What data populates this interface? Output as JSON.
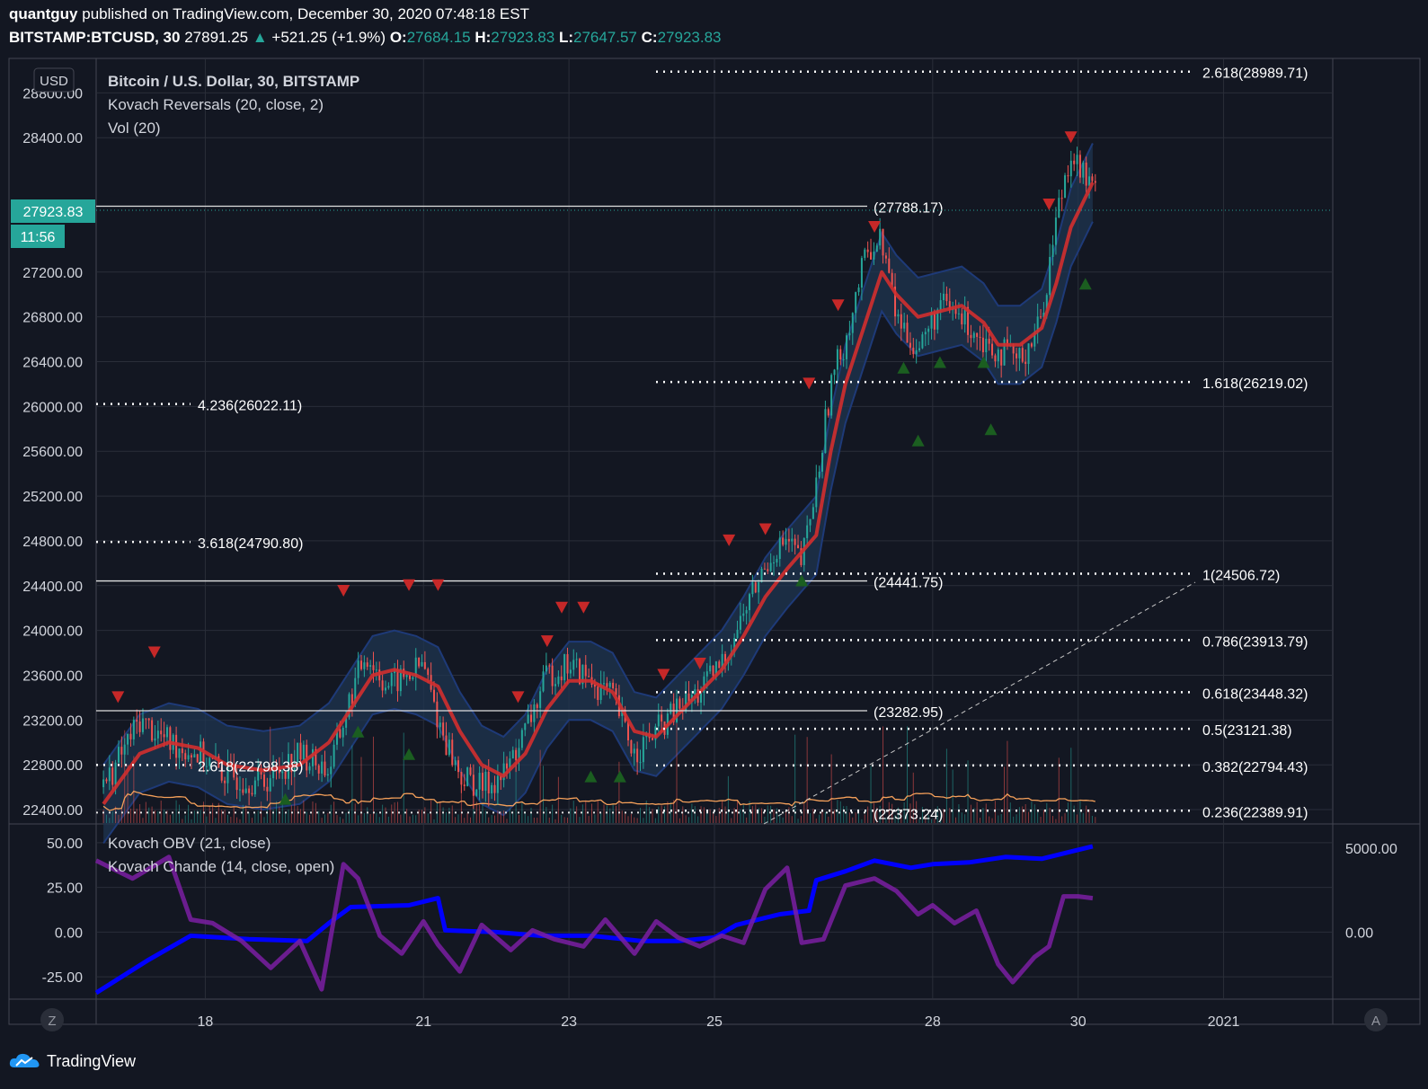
{
  "header": {
    "author": "quantguy",
    "published": "published on TradingView.com, December 30, 2020 07:48:18 EST",
    "symbol": "BITSTAMP:BTCUSD, 30",
    "last": "27891.25",
    "change": "+521.25 (+1.9%)",
    "o_label": "O:",
    "o_val": "27684.15",
    "h_label": "H:",
    "h_val": "27923.83",
    "l_label": "L:",
    "l_val": "27647.57",
    "c_label": "C:",
    "c_val": "27923.83"
  },
  "legend": {
    "title": "Bitcoin / U.S. Dollar, 30, BITSTAMP",
    "ind1": "Kovach Reversals (20, close, 2)",
    "ind2": "Vol (20)",
    "ind3": "Kovach OBV (21, close)",
    "ind4": "Kovach Chande (14, close, open)",
    "currency": "USD"
  },
  "price_tag": {
    "price": "27923.83",
    "time": "11:56"
  },
  "footer": {
    "brand": "TradingView"
  },
  "scale_buttons": {
    "left": "Z",
    "right": "A"
  },
  "colors": {
    "background": "#131722",
    "grid": "#2a2e39",
    "up": "#26a69a",
    "down": "#ef5350",
    "band": "#1e3a78",
    "band_fill": "#1f3550",
    "basis": "#d32f2f",
    "obv": "#0000ff",
    "chande": "#7b1fa2",
    "vol_ma": "#f5a05a",
    "buy_marker": "#1b5e20",
    "sell_marker": "#c62828"
  },
  "chart_data": [
    {
      "type": "candlestick",
      "pane": "price",
      "title": "Bitcoin / U.S. Dollar, 30, BITSTAMP",
      "x_ticks": [
        "18",
        "21",
        "23",
        "25",
        "28",
        "30",
        "2021"
      ],
      "x_tick_days": [
        18,
        21,
        23,
        25,
        28,
        30,
        32
      ],
      "y_ticks": [
        "22400.00",
        "22800.00",
        "23200.00",
        "23600.00",
        "24000.00",
        "24400.00",
        "24800.00",
        "25200.00",
        "25600.00",
        "26000.00",
        "26400.00",
        "26800.00",
        "27200.00",
        "28400.00",
        "28800.00"
      ],
      "ylim": [
        22280,
        29100
      ],
      "xlim_days": [
        16.5,
        33.5
      ],
      "close_path": [
        [
          16.6,
          22600
        ],
        [
          17.1,
          23200
        ],
        [
          17.5,
          23000
        ],
        [
          17.9,
          22900
        ],
        [
          18.3,
          22700
        ],
        [
          18.8,
          22650
        ],
        [
          19.3,
          22900
        ],
        [
          19.7,
          22750
        ],
        [
          20.0,
          23400
        ],
        [
          20.2,
          23800
        ],
        [
          20.5,
          23500
        ],
        [
          20.8,
          23600
        ],
        [
          21.0,
          23700
        ],
        [
          21.2,
          23200
        ],
        [
          21.5,
          22700
        ],
        [
          21.8,
          22600
        ],
        [
          22.1,
          22700
        ],
        [
          22.4,
          23100
        ],
        [
          22.7,
          23600
        ],
        [
          23.0,
          23700
        ],
        [
          23.3,
          23550
        ],
        [
          23.6,
          23400
        ],
        [
          23.9,
          22900
        ],
        [
          24.2,
          23100
        ],
        [
          24.5,
          23300
        ],
        [
          24.8,
          23450
        ],
        [
          25.1,
          23700
        ],
        [
          25.3,
          24000
        ],
        [
          25.5,
          24300
        ],
        [
          25.8,
          24700
        ],
        [
          26.0,
          24800
        ],
        [
          26.2,
          24600
        ],
        [
          26.4,
          25300
        ],
        [
          26.6,
          26200
        ],
        [
          26.8,
          26600
        ],
        [
          27.1,
          27400
        ],
        [
          27.3,
          27500
        ],
        [
          27.5,
          26800
        ],
        [
          27.8,
          26500
        ],
        [
          28.1,
          26900
        ],
        [
          28.4,
          26800
        ],
        [
          28.7,
          26600
        ],
        [
          28.9,
          26500
        ],
        [
          29.2,
          26400
        ],
        [
          29.5,
          26800
        ],
        [
          29.7,
          27700
        ],
        [
          29.9,
          28300
        ],
        [
          30.0,
          28150
        ],
        [
          30.2,
          27924
        ]
      ],
      "basis_path": [
        [
          16.6,
          22450
        ],
        [
          17.1,
          22900
        ],
        [
          17.5,
          23000
        ],
        [
          17.9,
          22950
        ],
        [
          18.3,
          22800
        ],
        [
          18.8,
          22750
        ],
        [
          19.3,
          22800
        ],
        [
          19.7,
          23000
        ],
        [
          20.0,
          23300
        ],
        [
          20.3,
          23600
        ],
        [
          20.6,
          23650
        ],
        [
          20.9,
          23600
        ],
        [
          21.2,
          23500
        ],
        [
          21.5,
          23100
        ],
        [
          21.8,
          22800
        ],
        [
          22.1,
          22700
        ],
        [
          22.4,
          22900
        ],
        [
          22.7,
          23300
        ],
        [
          23.0,
          23550
        ],
        [
          23.3,
          23550
        ],
        [
          23.6,
          23450
        ],
        [
          23.9,
          23100
        ],
        [
          24.2,
          23050
        ],
        [
          24.5,
          23250
        ],
        [
          24.8,
          23450
        ],
        [
          25.1,
          23650
        ],
        [
          25.4,
          23950
        ],
        [
          25.7,
          24300
        ],
        [
          26.0,
          24550
        ],
        [
          26.2,
          24700
        ],
        [
          26.4,
          24850
        ],
        [
          26.6,
          25600
        ],
        [
          26.8,
          26200
        ],
        [
          27.1,
          26800
        ],
        [
          27.3,
          27200
        ],
        [
          27.5,
          27000
        ],
        [
          27.8,
          26800
        ],
        [
          28.1,
          26850
        ],
        [
          28.4,
          26900
        ],
        [
          28.7,
          26750
        ],
        [
          28.9,
          26550
        ],
        [
          29.2,
          26550
        ],
        [
          29.5,
          26700
        ],
        [
          29.7,
          27100
        ],
        [
          29.9,
          27600
        ],
        [
          30.2,
          28000
        ]
      ],
      "bands_width": 350,
      "levels": [
        {
          "label": "(27788.17)",
          "price": 27788.17,
          "style": "solid"
        },
        {
          "label": "(24441.75)",
          "price": 24441.75,
          "style": "solid"
        },
        {
          "label": "(23282.95)",
          "price": 23282.95,
          "style": "solid"
        },
        {
          "label": "(22373.24)",
          "price": 22373.24,
          "style": "dotted"
        }
      ],
      "fib_right": [
        {
          "label": "2.618(28989.71)",
          "price": 28989.71
        },
        {
          "label": "1.618(26219.02)",
          "price": 26219.02
        },
        {
          "label": "1(24506.72)",
          "price": 24506.72
        },
        {
          "label": "0.786(23913.79)",
          "price": 23913.79
        },
        {
          "label": "0.618(23448.32)",
          "price": 23448.32
        },
        {
          "label": "0.5(23121.38)",
          "price": 23121.38
        },
        {
          "label": "0.382(22794.43)",
          "price": 22794.43
        },
        {
          "label": "0.236(22389.91)",
          "price": 22389.91
        }
      ],
      "fib_left": [
        {
          "label": "4.236(26022.11)",
          "price": 26022.11
        },
        {
          "label": "3.618(24790.80)",
          "price": 24790.8
        },
        {
          "label": "2.618(22798.38)",
          "price": 22798.38
        }
      ],
      "sell_signals": [
        [
          16.8,
          23400
        ],
        [
          17.3,
          23800
        ],
        [
          19.9,
          24350
        ],
        [
          20.8,
          24400
        ],
        [
          21.2,
          24400
        ],
        [
          22.3,
          23400
        ],
        [
          22.7,
          23900
        ],
        [
          22.9,
          24200
        ],
        [
          23.2,
          24200
        ],
        [
          24.3,
          23600
        ],
        [
          24.8,
          23700
        ],
        [
          25.2,
          24800
        ],
        [
          25.7,
          24900
        ],
        [
          26.3,
          26200
        ],
        [
          26.7,
          26900
        ],
        [
          27.2,
          27600
        ],
        [
          29.6,
          27800
        ],
        [
          29.9,
          28400
        ]
      ],
      "buy_signals": [
        [
          19.1,
          22500
        ],
        [
          20.1,
          23100
        ],
        [
          20.8,
          22900
        ],
        [
          23.3,
          22700
        ],
        [
          23.7,
          22700
        ],
        [
          26.2,
          24450
        ],
        [
          27.6,
          26350
        ],
        [
          27.8,
          25700
        ],
        [
          28.1,
          26400
        ],
        [
          28.7,
          26400
        ],
        [
          28.8,
          25800
        ],
        [
          30.1,
          27100
        ]
      ]
    },
    {
      "type": "line",
      "pane": "indicators",
      "y_ticks_left": [
        "50.00",
        "25.00",
        "0.00",
        "-25.00"
      ],
      "y_ticks_right": [
        "5000.00",
        "0.00"
      ],
      "ylim": [
        -37,
        60
      ],
      "series": [
        {
          "name": "Kovach OBV (21, close)",
          "points": [
            [
              16.5,
              -34
            ],
            [
              17.2,
              -16
            ],
            [
              17.8,
              -2
            ],
            [
              18.6,
              -4
            ],
            [
              19.4,
              -5
            ],
            [
              19.7,
              5
            ],
            [
              20.0,
              14
            ],
            [
              20.8,
              15
            ],
            [
              21.2,
              19
            ],
            [
              21.3,
              1
            ],
            [
              22.0,
              0
            ],
            [
              22.6,
              -2
            ],
            [
              23.3,
              -2
            ],
            [
              24.0,
              -5
            ],
            [
              24.5,
              -5
            ],
            [
              25.0,
              -3
            ],
            [
              25.3,
              4
            ],
            [
              25.9,
              10
            ],
            [
              26.3,
              12
            ],
            [
              26.4,
              29
            ],
            [
              26.8,
              34
            ],
            [
              27.2,
              40
            ],
            [
              27.7,
              36
            ],
            [
              28.0,
              38
            ],
            [
              28.5,
              39
            ],
            [
              29.0,
              42
            ],
            [
              29.5,
              41
            ],
            [
              29.9,
              45
            ],
            [
              30.2,
              48
            ]
          ]
        },
        {
          "name": "Kovach Chande (14, close, open)",
          "points": [
            [
              16.5,
              40
            ],
            [
              17.0,
              30
            ],
            [
              17.5,
              42
            ],
            [
              17.8,
              7
            ],
            [
              18.1,
              5
            ],
            [
              18.5,
              -5
            ],
            [
              18.9,
              -20
            ],
            [
              19.3,
              -5
            ],
            [
              19.6,
              -32
            ],
            [
              19.9,
              38
            ],
            [
              20.1,
              30
            ],
            [
              20.4,
              -2
            ],
            [
              20.7,
              -12
            ],
            [
              21.0,
              6
            ],
            [
              21.2,
              -7
            ],
            [
              21.5,
              -22
            ],
            [
              21.8,
              4
            ],
            [
              22.2,
              -10
            ],
            [
              22.5,
              1
            ],
            [
              22.8,
              -4
            ],
            [
              23.2,
              -8
            ],
            [
              23.5,
              7
            ],
            [
              23.9,
              -12
            ],
            [
              24.2,
              6
            ],
            [
              24.5,
              -3
            ],
            [
              24.8,
              -8
            ],
            [
              25.1,
              -2
            ],
            [
              25.4,
              -6
            ],
            [
              25.7,
              24
            ],
            [
              26.0,
              36
            ],
            [
              26.2,
              -6
            ],
            [
              26.5,
              -4
            ],
            [
              26.8,
              26
            ],
            [
              27.2,
              30
            ],
            [
              27.5,
              23
            ],
            [
              27.8,
              10
            ],
            [
              28.0,
              15
            ],
            [
              28.3,
              5
            ],
            [
              28.6,
              12
            ],
            [
              28.9,
              -18
            ],
            [
              29.1,
              -28
            ],
            [
              29.4,
              -14
            ],
            [
              29.6,
              -8
            ],
            [
              29.8,
              20
            ],
            [
              30.0,
              20
            ],
            [
              30.2,
              19
            ]
          ]
        }
      ]
    }
  ]
}
